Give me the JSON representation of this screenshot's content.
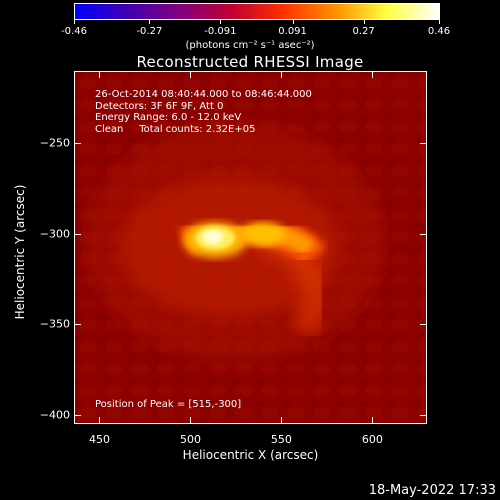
{
  "colorbar": {
    "tick_labels": [
      "-0.46",
      "-0.27",
      "-0.091",
      "0.091",
      "0.27",
      "0.46"
    ],
    "tick_values": [
      -0.46,
      -0.27,
      -0.091,
      0.091,
      0.27,
      0.46
    ],
    "units": "(photons cm⁻² s⁻¹ asec⁻²)",
    "colormap": [
      "#0000ff",
      "#4000b0",
      "#800080",
      "#c00030",
      "#ff3000",
      "#ff9000",
      "#ffff40",
      "#ffffff"
    ]
  },
  "title": "Reconstructed RHESSI Image",
  "annotations": {
    "time_range": "26-Oct-2014 08:40:44.000 to 08:46:44.000",
    "detectors": "Detectors: 3F 6F 9F, Att 0",
    "energy": "Energy Range: 6.0 - 12.0 keV",
    "clean": "Clean     Total counts: 2.32E+05",
    "peak": "Position of Peak = [515,-300]"
  },
  "axes": {
    "xlabel": "Heliocentric X (arcsec)",
    "ylabel": "Heliocentric Y (arcsec)",
    "x_ticks": [
      450,
      500,
      550,
      600
    ],
    "x_tick_labels": [
      "450",
      "500",
      "550",
      "600"
    ],
    "y_ticks": [
      -250,
      -300,
      -350,
      -400
    ],
    "y_tick_labels": [
      "−250",
      "−300",
      "−350",
      "−400"
    ],
    "xlim": [
      436,
      630
    ],
    "ylim": [
      -405,
      -210
    ]
  },
  "timestamp": "18-May-2022 17:33"
}
